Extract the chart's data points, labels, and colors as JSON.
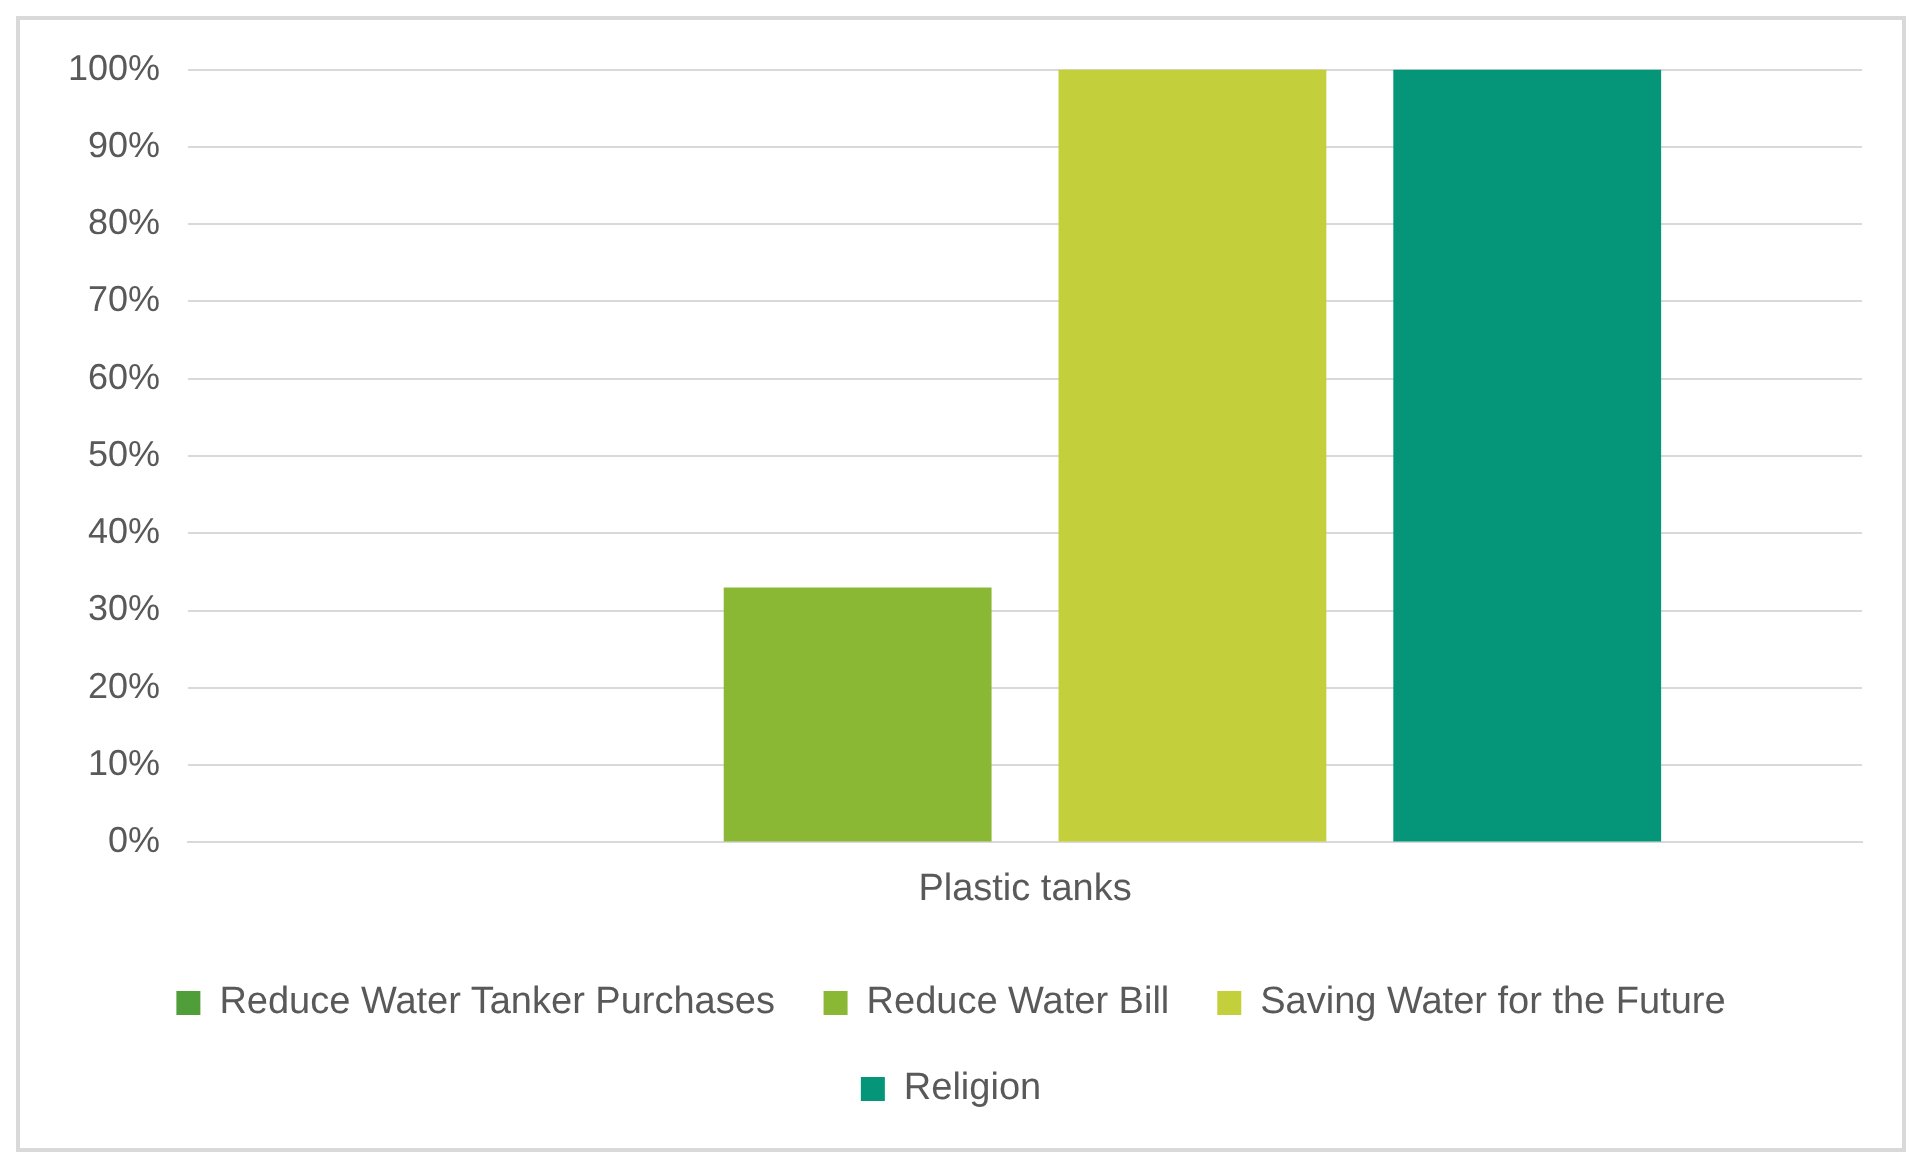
{
  "chart_data": {
    "type": "bar",
    "categories": [
      "Plastic tanks"
    ],
    "series": [
      {
        "name": "Reduce Water Tanker Purchases",
        "color": "#4f9e3a",
        "values": [
          0
        ]
      },
      {
        "name": "Reduce Water Bill",
        "color": "#8ab734",
        "values": [
          33
        ]
      },
      {
        "name": "Saving Water for the Future",
        "color": "#c3d03b",
        "values": [
          100
        ]
      },
      {
        "name": "Religion",
        "color": "#05967a",
        "values": [
          100
        ]
      }
    ],
    "ylim": [
      0,
      100
    ],
    "yticks": [
      {
        "value": 0,
        "label": "0%"
      },
      {
        "value": 10,
        "label": "10%"
      },
      {
        "value": 20,
        "label": "20%"
      },
      {
        "value": 30,
        "label": "30%"
      },
      {
        "value": 40,
        "label": "40%"
      },
      {
        "value": 50,
        "label": "50%"
      },
      {
        "value": 60,
        "label": "60%"
      },
      {
        "value": 70,
        "label": "70%"
      },
      {
        "value": 80,
        "label": "80%"
      },
      {
        "value": 90,
        "label": "90%"
      },
      {
        "value": 100,
        "label": "100%"
      }
    ],
    "grid": "y",
    "legend": "bottom"
  }
}
